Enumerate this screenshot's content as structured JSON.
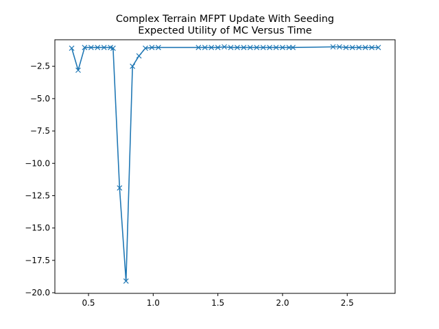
{
  "chart_data": {
    "type": "line",
    "title": [
      "Complex Terrain MFPT Update With Seeding",
      "Expected Utility of MC Versus Time"
    ],
    "xlabel": "",
    "ylabel": "",
    "xlim": [
      0.24,
      2.87
    ],
    "ylim": [
      -20.05,
      -0.45
    ],
    "xticks": [
      0.5,
      1.0,
      1.5,
      2.0,
      2.5
    ],
    "xtick_labels": [
      "0.5",
      "1.0",
      "1.5",
      "2.0",
      "2.5"
    ],
    "yticks": [
      -2.5,
      -5.0,
      -7.5,
      -10.0,
      -12.5,
      -15.0,
      -17.5,
      -20.0
    ],
    "ytick_labels": [
      "−2.5",
      "−5.0",
      "−7.5",
      "−10.0",
      "−12.5",
      "−15.0",
      "−17.5",
      "−20.0"
    ],
    "grid": false,
    "legend": "none",
    "series": [
      {
        "color": "#1f77b4",
        "marker": "x",
        "x": [
          0.37,
          0.42,
          0.47,
          0.52,
          0.57,
          0.62,
          0.67,
          0.69,
          0.74,
          0.79,
          0.84,
          0.89,
          0.94,
          0.99,
          1.04,
          1.35,
          1.4,
          1.45,
          1.5,
          1.55,
          1.6,
          1.65,
          1.7,
          1.75,
          1.8,
          1.85,
          1.9,
          1.95,
          2.0,
          2.05,
          2.08,
          2.39,
          2.44,
          2.49,
          2.54,
          2.59,
          2.64,
          2.69,
          2.74
        ],
        "y": [
          -1.1,
          -2.8,
          -1.05,
          -1.05,
          -1.05,
          -1.05,
          -1.05,
          -1.1,
          -11.9,
          -19.1,
          -2.5,
          -1.7,
          -1.1,
          -1.05,
          -1.05,
          -1.05,
          -1.05,
          -1.05,
          -1.05,
          -1.0,
          -1.05,
          -1.05,
          -1.05,
          -1.05,
          -1.05,
          -1.05,
          -1.05,
          -1.05,
          -1.05,
          -1.05,
          -1.05,
          -1.0,
          -1.0,
          -1.05,
          -1.05,
          -1.05,
          -1.05,
          -1.05,
          -1.05
        ]
      }
    ]
  }
}
